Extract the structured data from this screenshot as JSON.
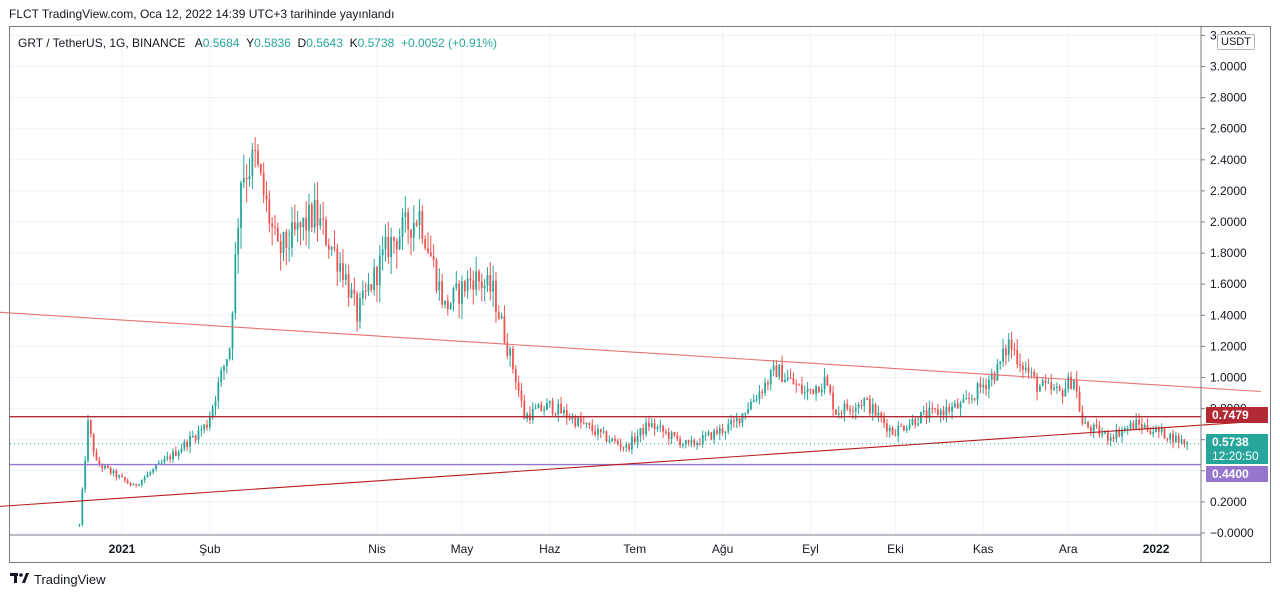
{
  "header": {
    "published": "FLCT TradingView.com, Oca 12, 2022 14:39 UTC+3 tarihinde yayınlandı"
  },
  "legend": {
    "symbol": "GRT / TetherUS, 1G, BINANCE",
    "open_label": "A",
    "open": "0.5684",
    "high_label": "Y",
    "high": "0.5836",
    "low_label": "D",
    "low": "0.5643",
    "close_label": "K",
    "close": "0.5738",
    "change": "+0.0052 (+0.91%)"
  },
  "currency_badge": "USDT",
  "price_tags": {
    "resistance": "0.7479",
    "last_price": "0.5738",
    "countdown": "12:20:50",
    "support": "0.4400"
  },
  "footer": {
    "brand": "TradingView"
  },
  "colors": {
    "up": "#26a69a",
    "down": "#ef5350",
    "resistance_line": "#b22833",
    "support_line": "#9575cd",
    "trend_upper": "#e57373",
    "trend_lower": "#b71c1c",
    "last_price_tag": "#26a69a"
  },
  "chart_data": {
    "type": "candlestick",
    "title": "GRT / TetherUS, 1G, BINANCE",
    "y_ticks": [
      "3.2000",
      "3.0000",
      "2.8000",
      "2.6000",
      "2.4000",
      "2.2000",
      "2.0000",
      "1.8000",
      "1.6000",
      "1.4000",
      "1.2000",
      "1.0000",
      "0.8000",
      "0.6000",
      "0.4000",
      "0.2000",
      "−0.0000"
    ],
    "ylim": [
      -0.05,
      3.2
    ],
    "x_ticks": [
      "2021",
      "Şub",
      "Nis",
      "May",
      "Haz",
      "Tem",
      "Ağu",
      "Eyl",
      "Eki",
      "Kas",
      "Ara",
      "2022"
    ],
    "price_anchors": [
      {
        "d": "2020-12-17",
        "p": 0.05
      },
      {
        "d": "2020-12-20",
        "p": 0.7
      },
      {
        "d": "2020-12-23",
        "p": 0.45
      },
      {
        "d": "2021-01-05",
        "p": 0.3
      },
      {
        "d": "2021-01-20",
        "p": 0.52
      },
      {
        "d": "2021-01-31",
        "p": 0.7
      },
      {
        "d": "2021-02-08",
        "p": 1.2
      },
      {
        "d": "2021-02-12",
        "p": 2.3
      },
      {
        "d": "2021-02-17",
        "p": 2.4
      },
      {
        "d": "2021-02-25",
        "p": 1.8
      },
      {
        "d": "2021-03-10",
        "p": 2.05
      },
      {
        "d": "2021-03-20",
        "p": 1.7
      },
      {
        "d": "2021-03-25",
        "p": 1.4
      },
      {
        "d": "2021-04-05",
        "p": 1.85
      },
      {
        "d": "2021-04-16",
        "p": 2.05
      },
      {
        "d": "2021-04-25",
        "p": 1.45
      },
      {
        "d": "2021-05-05",
        "p": 1.65
      },
      {
        "d": "2021-05-12",
        "p": 1.55
      },
      {
        "d": "2021-05-20",
        "p": 1.0
      },
      {
        "d": "2021-05-23",
        "p": 0.75
      },
      {
        "d": "2021-06-01",
        "p": 0.82
      },
      {
        "d": "2021-06-20",
        "p": 0.62
      },
      {
        "d": "2021-06-28",
        "p": 0.55
      },
      {
        "d": "2021-07-06",
        "p": 0.7
      },
      {
        "d": "2021-07-20",
        "p": 0.56
      },
      {
        "d": "2021-08-05",
        "p": 0.7
      },
      {
        "d": "2021-08-20",
        "p": 1.05
      },
      {
        "d": "2021-08-30",
        "p": 0.9
      },
      {
        "d": "2021-09-06",
        "p": 0.98
      },
      {
        "d": "2021-09-10",
        "p": 0.78
      },
      {
        "d": "2021-09-20",
        "p": 0.85
      },
      {
        "d": "2021-09-30",
        "p": 0.65
      },
      {
        "d": "2021-10-10",
        "p": 0.75
      },
      {
        "d": "2021-10-25",
        "p": 0.82
      },
      {
        "d": "2021-11-06",
        "p": 1.05
      },
      {
        "d": "2021-11-10",
        "p": 1.22
      },
      {
        "d": "2021-11-20",
        "p": 0.95
      },
      {
        "d": "2021-11-28",
        "p": 0.9
      },
      {
        "d": "2021-12-03",
        "p": 1.0
      },
      {
        "d": "2021-12-06",
        "p": 0.7
      },
      {
        "d": "2021-12-15",
        "p": 0.62
      },
      {
        "d": "2021-12-25",
        "p": 0.7
      },
      {
        "d": "2022-01-05",
        "p": 0.63
      },
      {
        "d": "2022-01-12",
        "p": 0.5738
      }
    ],
    "horizontal_lines": [
      {
        "name": "resistance",
        "value": 0.7479
      },
      {
        "name": "support",
        "value": 0.44
      }
    ],
    "trendlines": [
      {
        "name": "upper",
        "start": {
          "d": "2020-11-18",
          "p": 1.42
        },
        "end": {
          "d": "2022-02-07",
          "p": 0.91
        }
      },
      {
        "name": "lower",
        "start": {
          "d": "2020-11-18",
          "p": 0.17
        },
        "end": {
          "d": "2022-02-07",
          "p": 0.72
        }
      }
    ]
  }
}
